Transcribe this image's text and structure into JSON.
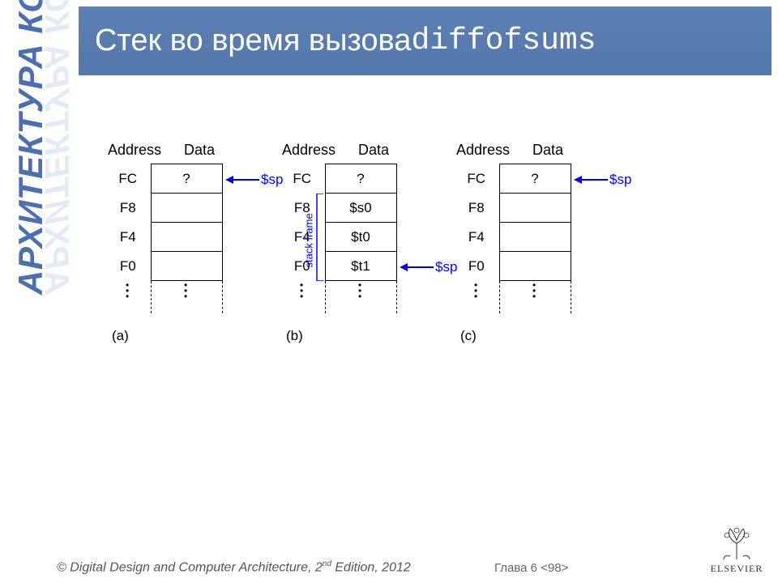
{
  "sidebar_text": "АРХИТЕКТУРА КОМПЬЮТЕРА",
  "title_text": "Стек во время вызова ",
  "title_code": "diffofsums",
  "headers": {
    "address": "Address",
    "data": "Data"
  },
  "colors": {
    "title_bg": "#5b80b3",
    "title_fg": "#ffffff",
    "sidebar_fg": "#4a6fb2",
    "sidebar_shadow": "#cfd9ea",
    "pointer": "#0000ff",
    "line": "#000000",
    "bg": "#ffffff"
  },
  "sp_label": "$sp",
  "stack_frame_label": "stack frame",
  "diagrams": [
    {
      "id": "a",
      "caption": "(a)",
      "rows": [
        {
          "addr": "FC",
          "data": "?"
        },
        {
          "addr": "F8",
          "data": ""
        },
        {
          "addr": "F4",
          "data": ""
        },
        {
          "addr": "F0",
          "data": ""
        }
      ],
      "sp_row": 0,
      "has_frame_bracket": false
    },
    {
      "id": "b",
      "caption": "(b)",
      "rows": [
        {
          "addr": "FC",
          "data": "?"
        },
        {
          "addr": "F8",
          "data": "$s0"
        },
        {
          "addr": "F4",
          "data": "$t0"
        },
        {
          "addr": "F0",
          "data": "$t1"
        }
      ],
      "sp_row": 3,
      "has_frame_bracket": true
    },
    {
      "id": "c",
      "caption": "(c)",
      "rows": [
        {
          "addr": "FC",
          "data": "?"
        },
        {
          "addr": "F8",
          "data": ""
        },
        {
          "addr": "F4",
          "data": ""
        },
        {
          "addr": "F0",
          "data": ""
        }
      ],
      "sp_row": 0,
      "has_frame_bracket": false
    }
  ],
  "footer_text_a": "© Digital Design and Computer Architecture",
  "footer_text_b": ", 2",
  "footer_text_c": "nd",
  "footer_text_d": " Edition, 2012",
  "chapter_text": "Глава 6 <98>",
  "logo_text": "ELSEVIER"
}
